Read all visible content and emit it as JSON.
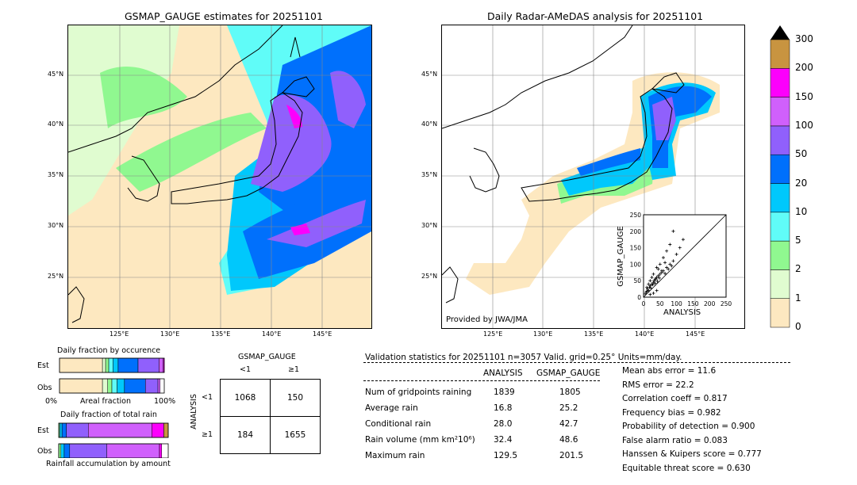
{
  "left_map": {
    "title": "GSMAP_GAUGE estimates for 20251101",
    "lat_labels": [
      "45°N",
      "40°N",
      "35°N",
      "30°N",
      "25°N"
    ],
    "lon_labels": [
      "125°E",
      "130°E",
      "135°E",
      "140°E",
      "145°E"
    ]
  },
  "right_map": {
    "title": "Daily Radar-AMeDAS analysis for 20251101",
    "lat_labels": [
      "45°N",
      "40°N",
      "35°N",
      "30°N",
      "25°N"
    ],
    "lon_labels": [
      "125°E",
      "130°E",
      "135°E",
      "140°E",
      "145°E"
    ],
    "credit": "Provided by JWA/JMA"
  },
  "colorbar": {
    "labels": [
      "0",
      "1",
      "2",
      "5",
      "10",
      "20",
      "50",
      "100",
      "150",
      "200",
      "300"
    ],
    "colors": [
      "#fde8c0",
      "#e0fcd0",
      "#90f890",
      "#60fcf8",
      "#00c8fc",
      "#0070fc",
      "#9060fc",
      "#d060fc",
      "#fc00fc",
      "#c89440"
    ],
    "extend_top_color": "#000000"
  },
  "scatter_inset": {
    "xlabel": "ANALYSIS",
    "ylabel": "GSMAP_GAUGE",
    "ticks": [
      "0",
      "50",
      "100",
      "150",
      "200",
      "250"
    ]
  },
  "occurrence": {
    "title": "Daily fraction by occurence",
    "rows": [
      "Est",
      "Obs"
    ],
    "axis_left": "0%",
    "axis_mid": "Areal fraction",
    "axis_right": "100%"
  },
  "total_rain": {
    "title": "Daily fraction of total rain",
    "rows": [
      "Est",
      "Obs"
    ],
    "caption": "Rainfall accumulation by amount"
  },
  "contingency": {
    "header": "GSMAP_GAUGE",
    "col_labels": [
      "<1",
      "≥1"
    ],
    "row_axis": "ANALYSIS",
    "row_labels": [
      "<1",
      "≥1"
    ],
    "cells": [
      [
        "1068",
        "150"
      ],
      [
        "184",
        "1655"
      ]
    ]
  },
  "validation": {
    "header": "Validation statistics for 20251101  n=3057 Valid. grid=0.25° Units=mm/day.",
    "col_analysis": "ANALYSIS",
    "col_gsmap": "GSMAP_GAUGE",
    "rows": [
      {
        "label": "Num of gridpoints raining",
        "analysis": "1839",
        "gsmap": "1805"
      },
      {
        "label": "Average rain",
        "analysis": "16.8",
        "gsmap": "25.2"
      },
      {
        "label": "Conditional rain",
        "analysis": "28.0",
        "gsmap": "42.7"
      },
      {
        "label": "Rain volume (mm km²10⁶)",
        "analysis": "32.4",
        "gsmap": "48.6"
      },
      {
        "label": "Maximum rain",
        "analysis": "129.5",
        "gsmap": "201.5"
      }
    ],
    "scores": [
      "Mean abs error =   11.6",
      "RMS error =   22.2",
      "Correlation coeff =  0.817",
      "Frequency bias =  0.982",
      "Probability of detection =  0.900",
      "False alarm ratio =  0.083",
      "Hanssen & Kuipers score =  0.777",
      "Equitable threat score =  0.630"
    ]
  },
  "chart_data": [
    {
      "type": "heatmap",
      "title": "GSMAP_GAUGE estimates for 20251101",
      "x_ticks": [
        "125°E",
        "130°E",
        "135°E",
        "140°E",
        "145°E"
      ],
      "y_ticks": [
        "45°N",
        "40°N",
        "35°N",
        "30°N",
        "25°N"
      ]
    },
    {
      "type": "heatmap",
      "title": "Daily Radar-AMeDAS analysis for 20251101",
      "x_ticks": [
        "125°E",
        "130°E",
        "135°E",
        "140°E",
        "145°E"
      ],
      "y_ticks": [
        "45°N",
        "40°N",
        "35°N",
        "30°N",
        "25°N"
      ]
    },
    {
      "type": "scatter",
      "xlabel": "ANALYSIS",
      "ylabel": "GSMAP_GAUGE",
      "xlim": [
        0,
        250
      ],
      "ylim": [
        0,
        250
      ],
      "x": [
        5,
        8,
        10,
        12,
        15,
        18,
        20,
        22,
        25,
        28,
        30,
        32,
        35,
        38,
        40,
        42,
        45,
        48,
        50,
        55,
        60,
        65,
        70,
        75,
        80,
        85,
        90,
        100,
        110,
        120,
        10,
        15,
        20,
        25,
        30,
        35,
        40,
        45,
        50,
        55,
        60,
        65,
        70,
        80,
        90,
        20,
        30,
        40
      ],
      "y": [
        10,
        15,
        18,
        25,
        20,
        30,
        35,
        28,
        40,
        38,
        45,
        50,
        42,
        55,
        60,
        48,
        65,
        58,
        70,
        75,
        80,
        72,
        90,
        85,
        100,
        95,
        110,
        130,
        150,
        175,
        30,
        40,
        50,
        60,
        70,
        55,
        90,
        85,
        100,
        80,
        120,
        105,
        140,
        160,
        200,
        8,
        12,
        20
      ]
    },
    {
      "type": "bar",
      "title": "Daily fraction by occurence",
      "categories": [
        "Est",
        "Obs"
      ],
      "series": [
        {
          "values": [
            0.41,
            0.41
          ]
        },
        {
          "values": [
            0.03,
            0.05
          ]
        },
        {
          "values": [
            0.03,
            0.04
          ]
        },
        {
          "values": [
            0.04,
            0.05
          ]
        },
        {
          "values": [
            0.05,
            0.07
          ]
        },
        {
          "values": [
            0.19,
            0.2
          ]
        },
        {
          "values": [
            0.2,
            0.12
          ]
        },
        {
          "values": [
            0.04,
            0.02
          ]
        },
        {
          "values": [
            0.01,
            0.0
          ]
        }
      ]
    },
    {
      "type": "bar",
      "title": "Daily fraction of total rain",
      "categories": [
        "Est",
        "Obs"
      ],
      "series": [
        {
          "values": [
            0.01,
            0.02
          ]
        },
        {
          "values": [
            0.02,
            0.03
          ]
        },
        {
          "values": [
            0.04,
            0.05
          ]
        },
        {
          "values": [
            0.2,
            0.34
          ]
        },
        {
          "values": [
            0.58,
            0.48
          ]
        },
        {
          "values": [
            0.11,
            0.02
          ]
        },
        {
          "values": [
            0.04,
            0.0
          ]
        }
      ]
    }
  ]
}
